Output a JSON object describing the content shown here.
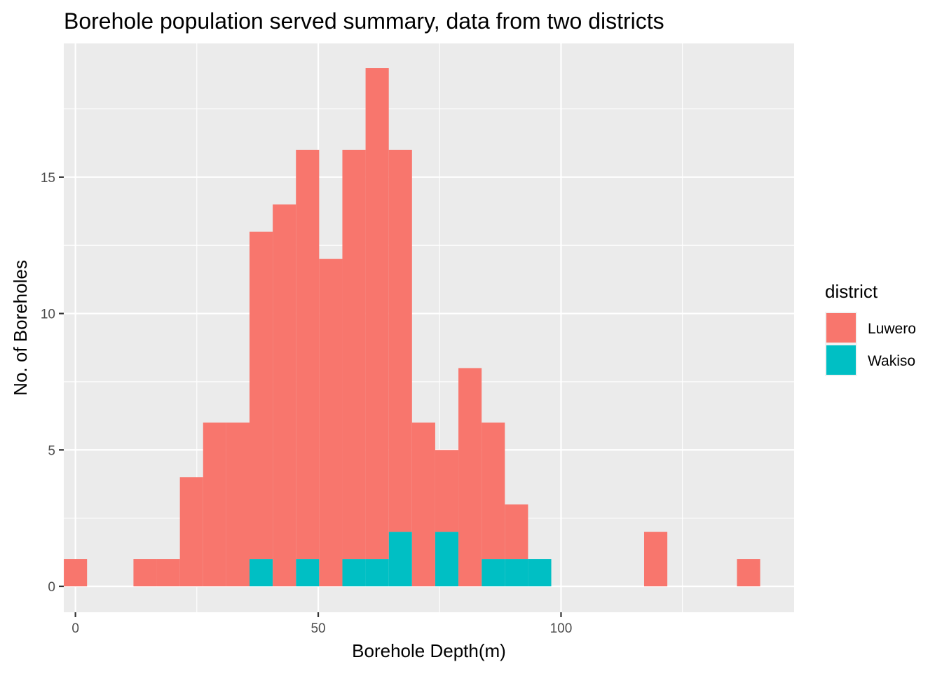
{
  "chart_data": {
    "type": "bar",
    "title": "Borehole population served summary, data from two districts",
    "xlabel": "Borehole Depth(m)",
    "ylabel": "No. of Boreholes",
    "xlim": [
      -2.4,
      148.0
    ],
    "ylim": [
      -0.95,
      19.9
    ],
    "xticks": [
      0,
      50,
      100
    ],
    "xtick_labels": [
      "0",
      "50",
      "100"
    ],
    "yticks": [
      0,
      5,
      10,
      15
    ],
    "ytick_labels": [
      "0",
      "5",
      "10",
      "15"
    ],
    "x_minor_breaks": [
      25,
      75,
      125
    ],
    "y_minor_breaks": [
      2.5,
      7.5,
      12.5,
      17.5
    ],
    "grid": true,
    "stacked": true,
    "bin_width": 4.78,
    "bin_start": -2.39,
    "legend": {
      "title": "district",
      "position": "right"
    },
    "series": [
      {
        "name": "Luwero",
        "color": "#F8766D",
        "bin_centers": [
          0.0,
          14.34,
          19.12,
          23.9,
          28.68,
          33.46,
          38.24,
          43.02,
          47.8,
          52.58,
          57.36,
          62.14,
          66.92,
          71.7,
          76.48,
          81.26,
          86.04,
          90.82,
          119.5,
          138.62
        ],
        "values": [
          1,
          1,
          1,
          4,
          6,
          6,
          12,
          14,
          15,
          12,
          15,
          18,
          14,
          6,
          3,
          8,
          5,
          2,
          2,
          1
        ]
      },
      {
        "name": "Wakiso",
        "color": "#00BFC4",
        "bin_centers": [
          38.24,
          47.8,
          57.36,
          62.14,
          66.92,
          76.48,
          86.04,
          90.82,
          95.6
        ],
        "values": [
          1,
          1,
          1,
          1,
          2,
          2,
          1,
          1,
          1
        ]
      }
    ]
  }
}
